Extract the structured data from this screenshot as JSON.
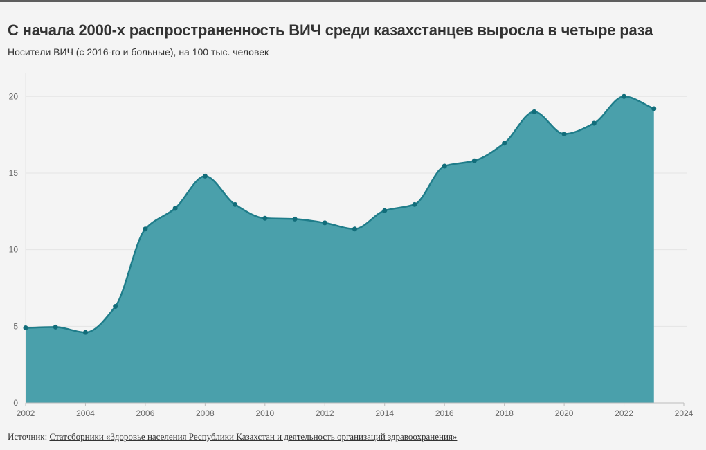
{
  "header": {
    "title": "С начала 2000-х распространенность ВИЧ среди казахстанцев выросла в четыре раза",
    "subtitle": "Носители ВИЧ (с 2016-го и больные), на 100 тыс. человек"
  },
  "footer": {
    "source_label": "Источник:",
    "source_text": "Статсборники «Здоровье населения Республики Казахстан и деятельность организаций здравоохранения»"
  },
  "colors": {
    "area": "#4aa0ab",
    "line": "#1f7d8a",
    "point": "#126d7a",
    "grid": "#e4e4e4",
    "axis": "#bdbdbd"
  },
  "chart_data": {
    "type": "area",
    "title": "С начала 2000-х распространенность ВИЧ среди казахстанцев выросла в четыре раза",
    "subtitle": "Носители ВИЧ (с 2016-го и больные), на 100 тыс. человек",
    "xlabel": "",
    "ylabel": "",
    "x": [
      2002,
      2003,
      2004,
      2005,
      2006,
      2007,
      2008,
      2009,
      2010,
      2011,
      2012,
      2013,
      2014,
      2015,
      2016,
      2017,
      2018,
      2019,
      2020,
      2021,
      2022,
      2023
    ],
    "series": [
      {
        "values": [
          4.9,
          4.95,
          4.6,
          6.3,
          11.35,
          12.7,
          14.8,
          12.95,
          12.05,
          12.0,
          11.75,
          11.35,
          12.55,
          12.95,
          15.45,
          15.8,
          16.95,
          19.0,
          17.55,
          18.25,
          20.0,
          19.2
        ]
      }
    ],
    "xlim": [
      2002,
      2024
    ],
    "ylim": [
      0,
      22
    ],
    "xticks": [
      2002,
      2004,
      2006,
      2008,
      2010,
      2012,
      2014,
      2016,
      2018,
      2020,
      2022,
      2024
    ],
    "yticks": [
      0,
      5,
      10,
      15,
      20
    ],
    "grid": true,
    "legend": "none"
  }
}
